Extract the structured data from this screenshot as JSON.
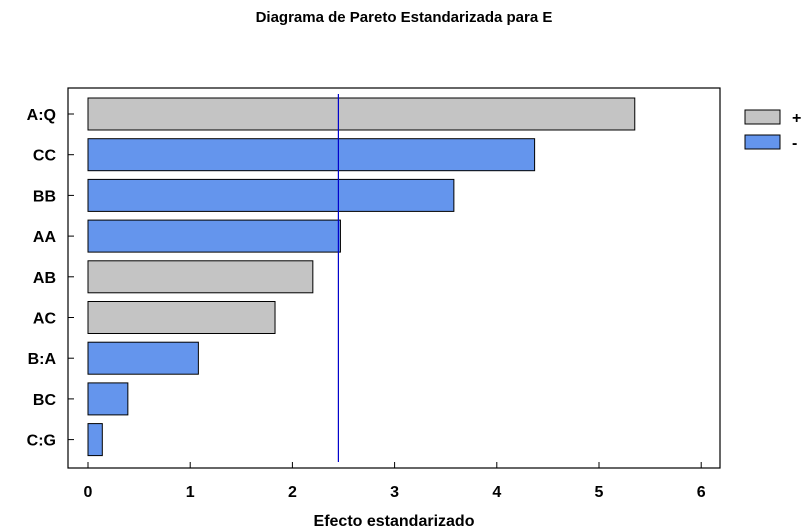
{
  "chart_data": {
    "type": "bar",
    "orientation": "horizontal",
    "title": "Diagrama de Pareto Estandarizada para E",
    "xlabel": "Efecto estandarizado",
    "ylabel": "",
    "xlim": [
      0,
      6.2
    ],
    "xticks": [
      0,
      1,
      2,
      3,
      4,
      5,
      6
    ],
    "categories": [
      "A:Q",
      "CC",
      "BB",
      "AA",
      "AB",
      "AC",
      "B:A",
      "BC",
      "C:G"
    ],
    "values": [
      5.35,
      4.37,
      3.58,
      2.47,
      2.2,
      1.83,
      1.08,
      0.39,
      0.14
    ],
    "signs": [
      "+",
      "-",
      "-",
      "-",
      "+",
      "+",
      "-",
      "-",
      "-"
    ],
    "reference_line": 2.45,
    "legend": {
      "position": "right",
      "entries": [
        {
          "label": "+",
          "color": "#c4c4c4"
        },
        {
          "label": "-",
          "color": "#6495ed"
        }
      ]
    },
    "colors": {
      "positive": "#c4c4c4",
      "negative": "#6495ed",
      "reference_line": "#0000cc"
    },
    "grid": false
  }
}
